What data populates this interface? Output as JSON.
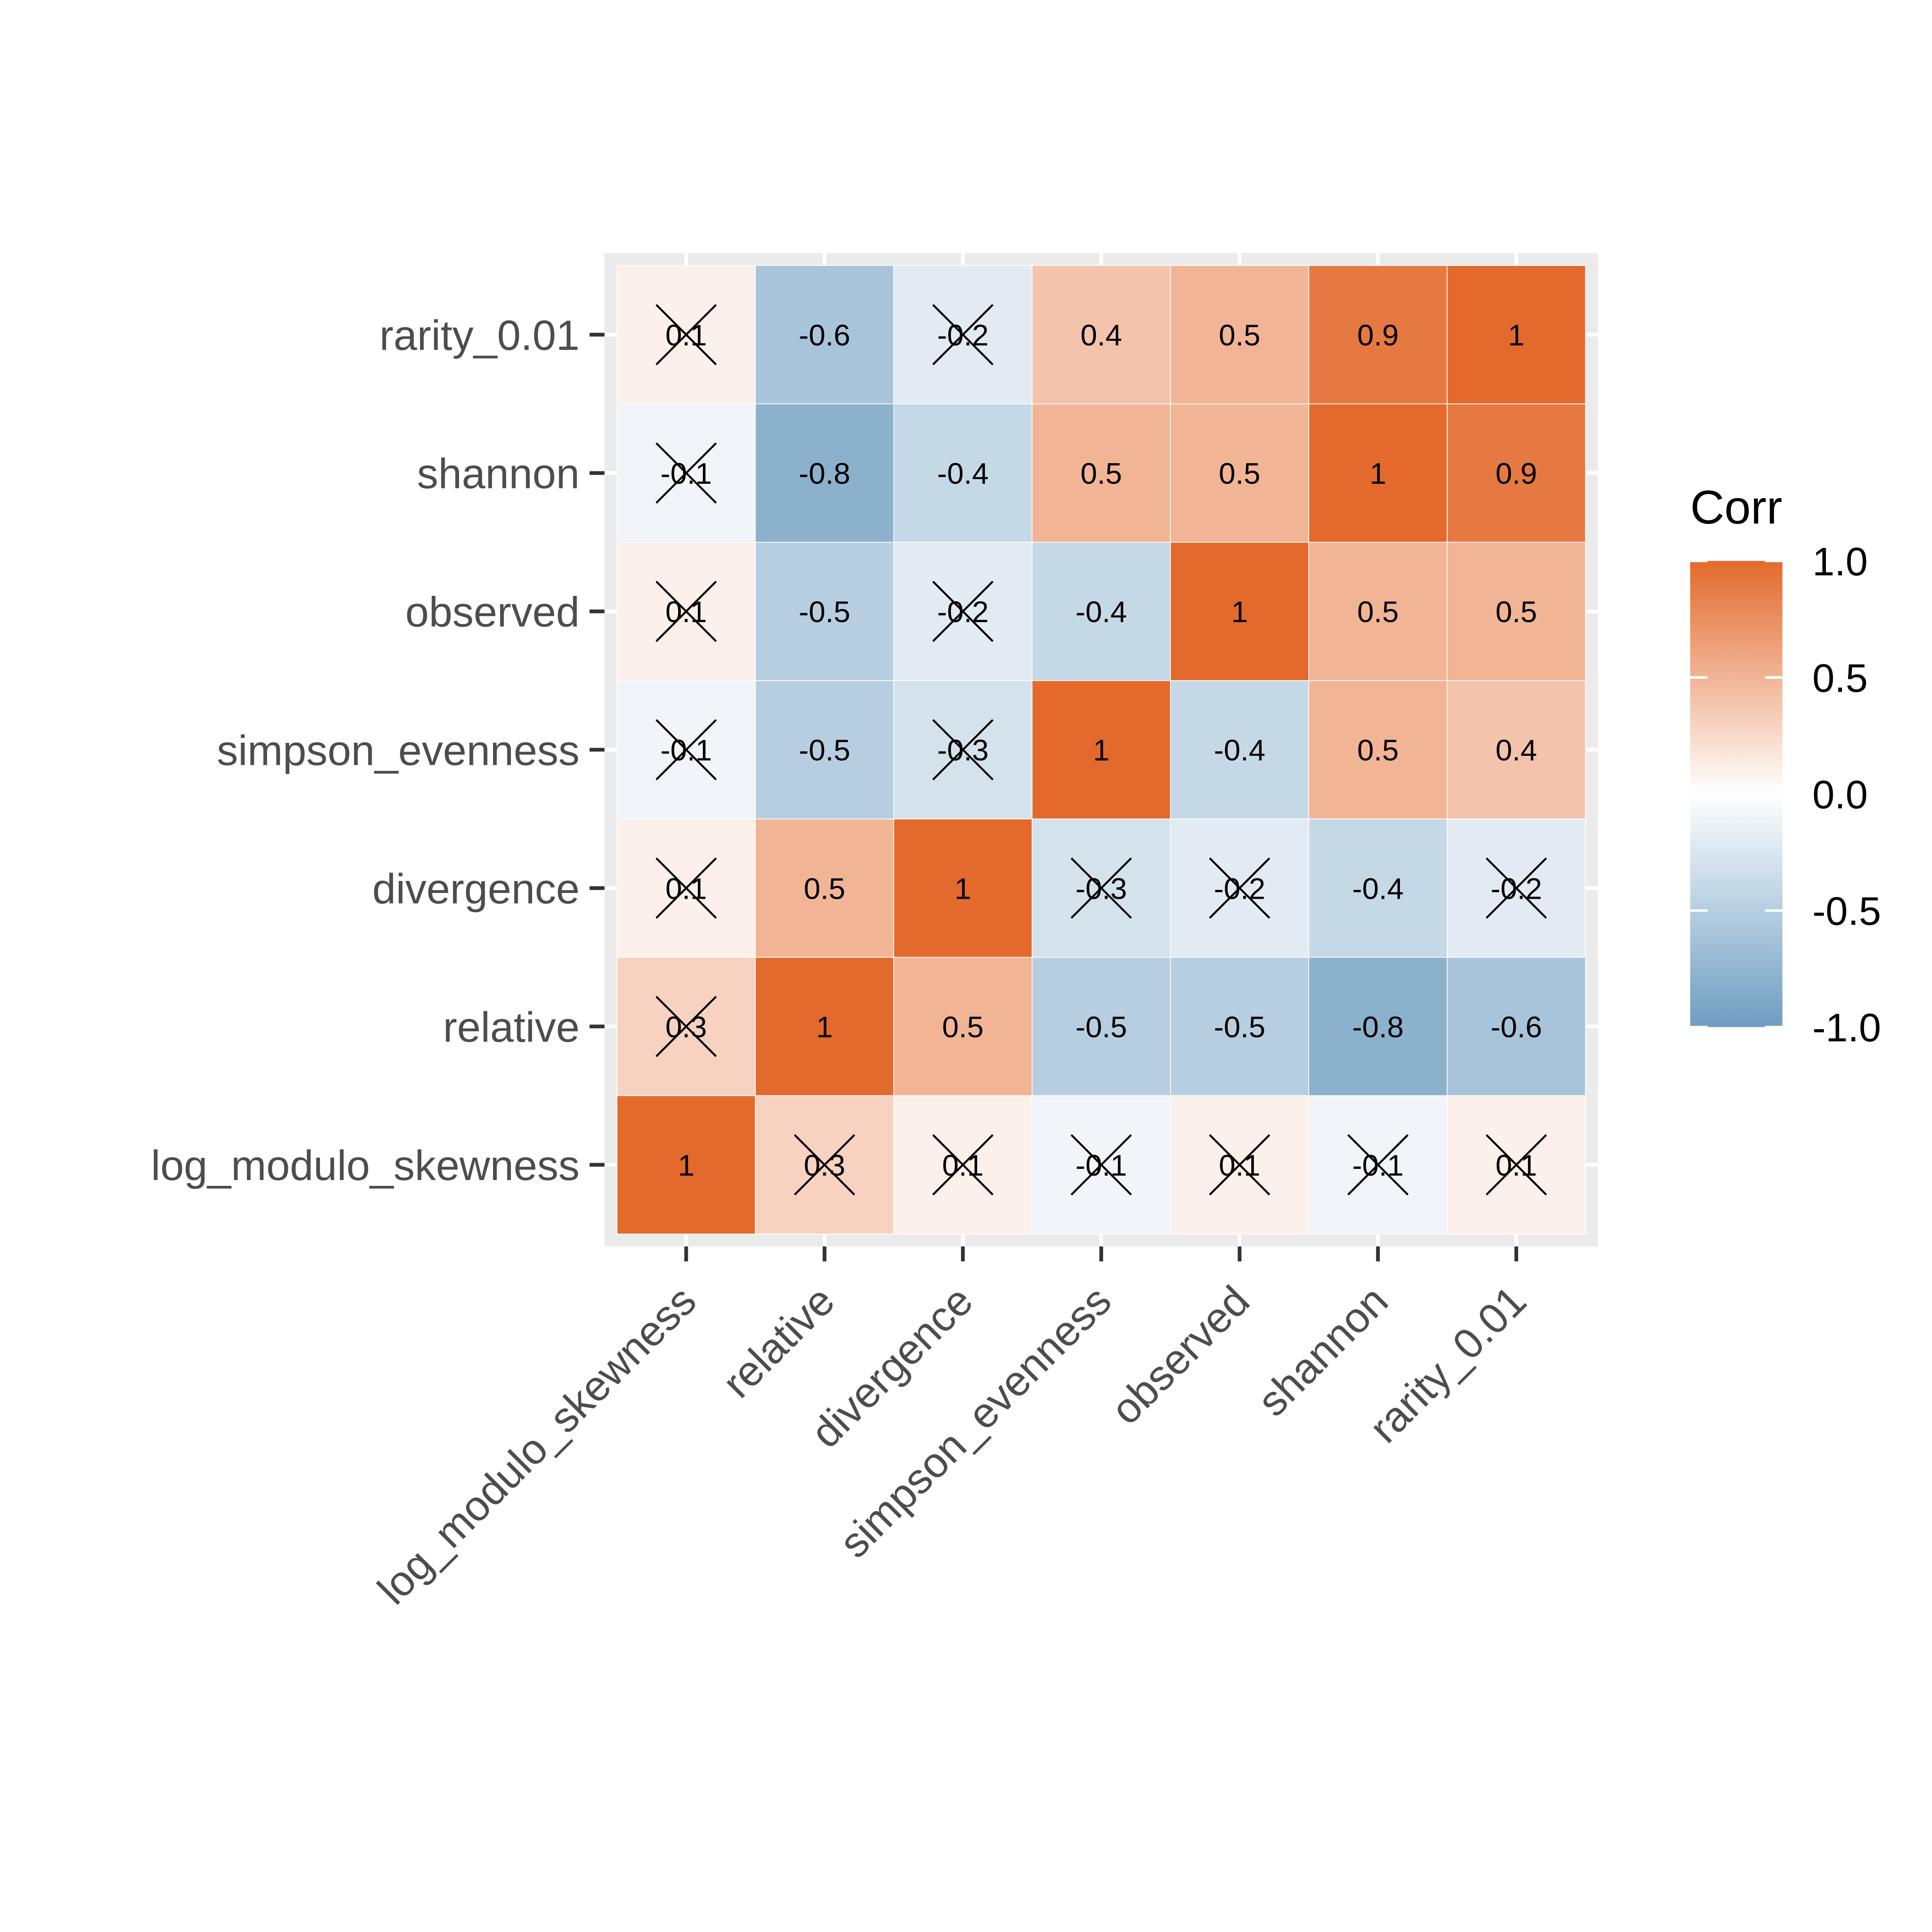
{
  "chart_data": {
    "type": "heatmap",
    "title": "",
    "xlabel": "",
    "ylabel": "",
    "variables": [
      "log_modulo_skewness",
      "relative",
      "divergence",
      "simpson_evenness",
      "observed",
      "shannon",
      "rarity_0.01"
    ],
    "values": [
      [
        1,
        0.3,
        0.1,
        -0.1,
        0.1,
        -0.1,
        0.1
      ],
      [
        0.3,
        1,
        0.5,
        -0.5,
        -0.5,
        -0.8,
        -0.6
      ],
      [
        0.1,
        0.5,
        1,
        -0.3,
        -0.2,
        -0.4,
        -0.2
      ],
      [
        -0.1,
        -0.5,
        -0.3,
        1,
        -0.4,
        0.5,
        0.4
      ],
      [
        0.1,
        -0.5,
        -0.2,
        -0.4,
        1,
        0.5,
        0.5
      ],
      [
        -0.1,
        -0.8,
        -0.4,
        0.5,
        0.5,
        1,
        0.9
      ],
      [
        0.1,
        -0.6,
        -0.2,
        0.4,
        0.5,
        0.9,
        1
      ]
    ],
    "insignificant": [
      [
        false,
        true,
        true,
        true,
        true,
        true,
        true
      ],
      [
        true,
        false,
        false,
        false,
        false,
        false,
        false
      ],
      [
        true,
        false,
        false,
        true,
        true,
        false,
        true
      ],
      [
        true,
        false,
        true,
        false,
        false,
        false,
        false
      ],
      [
        true,
        false,
        true,
        false,
        false,
        false,
        false
      ],
      [
        true,
        false,
        false,
        false,
        false,
        false,
        false
      ],
      [
        true,
        false,
        true,
        false,
        false,
        false,
        false
      ]
    ],
    "value_labels": [
      [
        "1",
        "0.3",
        "0.1",
        "-0.1",
        "0.1",
        "-0.1",
        "0.1"
      ],
      [
        "0.3",
        "1",
        "0.5",
        "-0.5",
        "-0.5",
        "-0.8",
        "-0.6"
      ],
      [
        "0.1",
        "0.5",
        "1",
        "-0.3",
        "-0.2",
        "-0.4",
        "-0.2"
      ],
      [
        "-0.1",
        "-0.5",
        "-0.3",
        "1",
        "-0.4",
        "0.5",
        "0.4"
      ],
      [
        "0.1",
        "-0.5",
        "-0.2",
        "-0.4",
        "1",
        "0.5",
        "0.5"
      ],
      [
        "-0.1",
        "-0.8",
        "-0.4",
        "0.5",
        "0.5",
        "1",
        "0.9"
      ],
      [
        "0.1",
        "-0.6",
        "-0.2",
        "0.4",
        "0.5",
        "0.9",
        "1"
      ]
    ],
    "legend": {
      "title": "Corr",
      "ticks": [
        1.0,
        0.5,
        0.0,
        -0.5,
        -1.0
      ],
      "tick_labels": [
        "1.0",
        "0.5",
        "0.0",
        "-0.5",
        "-1.0"
      ],
      "range": [
        -1,
        1
      ],
      "placement": "right"
    },
    "colors": {
      "low": "#6e9dc1",
      "mid": "#ffffff",
      "high": "#e36a2c",
      "panel": "#ebebeb",
      "axis_text": "#4d4d4d",
      "cell_text": "#000000"
    }
  }
}
